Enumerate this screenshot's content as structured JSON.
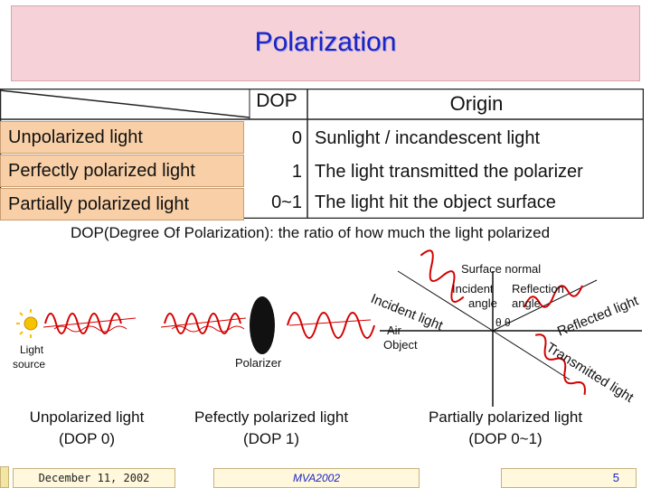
{
  "title": "Polarization",
  "table": {
    "dop_header": "DOP",
    "origin_header": "Origin",
    "rows": [
      {
        "label": "Unpolarized light",
        "dop": "0",
        "origin": "Sunlight / incandescent light"
      },
      {
        "label": "Perfectly polarized light",
        "dop": "1",
        "origin": "The light transmitted the polarizer"
      },
      {
        "label": "Partially polarized light",
        "dop": "0~1",
        "origin": "The light hit the object surface"
      }
    ]
  },
  "dop_definition": "DOP(Degree Of Polarization): the ratio of how much the light polarized",
  "diagram": {
    "light_source_label_1": "Light",
    "light_source_label_2": "source",
    "polarizer_label": "Polarizer",
    "surface_normal": "Surface normal",
    "incident_label": "Incident",
    "incident_angle": "angle",
    "reflection_label": "Reflection",
    "reflection_angle": "angle",
    "incident_light": "Incident light",
    "reflected_light": "Reflected light",
    "transmitted_light": "Transmitted light",
    "air": "Air",
    "object": "Object",
    "theta": "θ θ"
  },
  "captions": {
    "unpolarized_1": "Unpolarized light",
    "unpolarized_2": "(DOP 0)",
    "perfectly_1": "Pefectly polarized light",
    "perfectly_2": "(DOP 1)",
    "partially_1": "Partially polarized light",
    "partially_2": "(DOP 0~1)"
  },
  "footer": {
    "date": "December 11, 2002",
    "venue": "MVA2002",
    "page": "5"
  },
  "colors": {
    "title": "#1a23c8",
    "row_label_bg": "#f8cfa6",
    "title_bar_bg": "#f6d2d8",
    "wave": "#d40000"
  }
}
